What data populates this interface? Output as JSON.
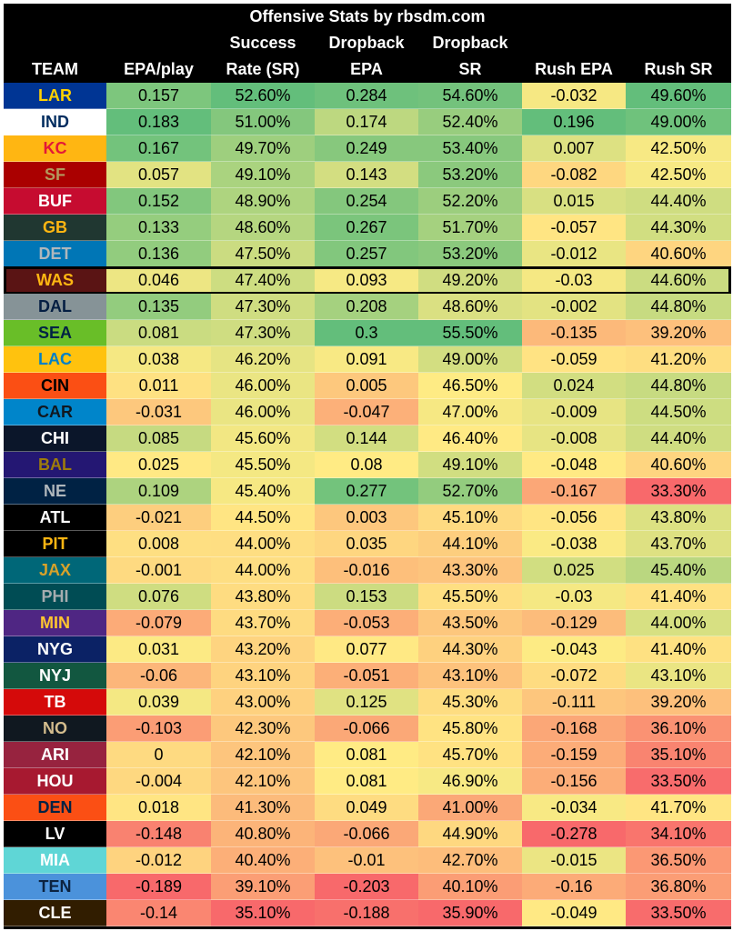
{
  "chart_data": {
    "type": "table",
    "title": "Offensive Stats by rbsdm.com",
    "columns": [
      {
        "key": "team",
        "label_lines": [
          "",
          "",
          "TEAM"
        ]
      },
      {
        "key": "epa",
        "label_lines": [
          "",
          "",
          "EPA/play"
        ]
      },
      {
        "key": "sr",
        "label_lines": [
          "",
          "Success",
          "Rate (SR)"
        ]
      },
      {
        "key": "db_epa",
        "label_lines": [
          "",
          "Dropback",
          "EPA"
        ]
      },
      {
        "key": "db_sr",
        "label_lines": [
          "",
          "Dropback",
          "SR"
        ]
      },
      {
        "key": "rush_epa",
        "label_lines": [
          "",
          "",
          "Rush EPA"
        ]
      },
      {
        "key": "rush_sr",
        "label_lines": [
          "",
          "",
          "Rush SR"
        ]
      }
    ],
    "highlighted_team": "WAS",
    "color_scale": {
      "low": "#f8696b",
      "mid": "#ffeb84",
      "high": "#63be7b"
    },
    "rows": [
      {
        "team": "LAR",
        "bg": "#003594",
        "fg": "#FFD100",
        "values": [
          "0.157",
          "52.60%",
          "0.284",
          "54.60%",
          "-0.032",
          "49.60%"
        ]
      },
      {
        "team": "IND",
        "bg": "#FFFFFF",
        "fg": "#002C5F",
        "values": [
          "0.183",
          "51.00%",
          "0.174",
          "52.40%",
          "0.196",
          "49.00%"
        ]
      },
      {
        "team": "KC",
        "bg": "#FFB612",
        "fg": "#E31837",
        "values": [
          "0.167",
          "49.70%",
          "0.249",
          "53.40%",
          "0.007",
          "42.50%"
        ]
      },
      {
        "team": "SF",
        "bg": "#AA0000",
        "fg": "#B3995D",
        "values": [
          "0.057",
          "49.10%",
          "0.143",
          "53.20%",
          "-0.082",
          "42.50%"
        ]
      },
      {
        "team": "BUF",
        "bg": "#C60C30",
        "fg": "#FFFFFF",
        "values": [
          "0.152",
          "48.90%",
          "0.254",
          "52.20%",
          "0.015",
          "44.40%"
        ]
      },
      {
        "team": "GB",
        "bg": "#203731",
        "fg": "#FFB612",
        "values": [
          "0.133",
          "48.60%",
          "0.267",
          "51.70%",
          "-0.057",
          "44.30%"
        ]
      },
      {
        "team": "DET",
        "bg": "#0076B6",
        "fg": "#B0B7BC",
        "values": [
          "0.136",
          "47.50%",
          "0.257",
          "53.20%",
          "-0.012",
          "40.60%"
        ]
      },
      {
        "team": "WAS",
        "bg": "#5A1414",
        "fg": "#FFB612",
        "values": [
          "0.046",
          "47.40%",
          "0.093",
          "49.20%",
          "-0.03",
          "44.60%"
        ]
      },
      {
        "team": "DAL",
        "bg": "#869397",
        "fg": "#041E42",
        "values": [
          "0.135",
          "47.30%",
          "0.208",
          "48.60%",
          "-0.002",
          "44.80%"
        ]
      },
      {
        "team": "SEA",
        "bg": "#69BE28",
        "fg": "#002244",
        "values": [
          "0.081",
          "47.30%",
          "0.3",
          "55.50%",
          "-0.135",
          "39.20%"
        ]
      },
      {
        "team": "LAC",
        "bg": "#FFC20E",
        "fg": "#0080C6",
        "values": [
          "0.038",
          "46.20%",
          "0.091",
          "49.00%",
          "-0.059",
          "41.20%"
        ]
      },
      {
        "team": "CIN",
        "bg": "#FB4F14",
        "fg": "#000000",
        "values": [
          "0.011",
          "46.00%",
          "0.005",
          "46.50%",
          "0.024",
          "44.80%"
        ]
      },
      {
        "team": "CAR",
        "bg": "#0085CA",
        "fg": "#101820",
        "values": [
          "-0.031",
          "46.00%",
          "-0.047",
          "47.00%",
          "-0.009",
          "44.50%"
        ]
      },
      {
        "team": "CHI",
        "bg": "#0B162A",
        "fg": "#FFFFFF",
        "values": [
          "0.085",
          "45.60%",
          "0.144",
          "46.40%",
          "-0.008",
          "44.40%"
        ]
      },
      {
        "team": "BAL",
        "bg": "#241773",
        "fg": "#9E7C0C",
        "values": [
          "0.025",
          "45.50%",
          "0.08",
          "49.10%",
          "-0.048",
          "40.60%"
        ]
      },
      {
        "team": "NE",
        "bg": "#002244",
        "fg": "#B0B7BC",
        "values": [
          "0.109",
          "45.40%",
          "0.277",
          "52.70%",
          "-0.167",
          "33.30%"
        ]
      },
      {
        "team": "ATL",
        "bg": "#000000",
        "fg": "#FFFFFF",
        "values": [
          "-0.021",
          "44.50%",
          "0.003",
          "45.10%",
          "-0.056",
          "43.80%"
        ]
      },
      {
        "team": "PIT",
        "bg": "#000000",
        "fg": "#FFB612",
        "values": [
          "0.008",
          "44.00%",
          "0.035",
          "44.10%",
          "-0.038",
          "43.70%"
        ]
      },
      {
        "team": "JAX",
        "bg": "#006778",
        "fg": "#D7A22A",
        "values": [
          "-0.001",
          "44.00%",
          "-0.016",
          "43.30%",
          "0.025",
          "45.40%"
        ]
      },
      {
        "team": "PHI",
        "bg": "#004C54",
        "fg": "#A5ACAF",
        "values": [
          "0.076",
          "43.80%",
          "0.153",
          "45.50%",
          "-0.03",
          "41.40%"
        ]
      },
      {
        "team": "MIN",
        "bg": "#4F2683",
        "fg": "#FFC62F",
        "values": [
          "-0.079",
          "43.70%",
          "-0.053",
          "43.50%",
          "-0.129",
          "44.00%"
        ]
      },
      {
        "team": "NYG",
        "bg": "#0B2265",
        "fg": "#FFFFFF",
        "values": [
          "0.031",
          "43.20%",
          "0.077",
          "44.30%",
          "-0.043",
          "41.40%"
        ]
      },
      {
        "team": "NYJ",
        "bg": "#125740",
        "fg": "#FFFFFF",
        "values": [
          "-0.06",
          "43.10%",
          "-0.051",
          "43.10%",
          "-0.072",
          "43.10%"
        ]
      },
      {
        "team": "TB",
        "bg": "#D50A0A",
        "fg": "#FFFFFF",
        "values": [
          "0.039",
          "43.00%",
          "0.125",
          "45.30%",
          "-0.111",
          "39.20%"
        ]
      },
      {
        "team": "NO",
        "bg": "#101820",
        "fg": "#D3BC8D",
        "values": [
          "-0.103",
          "42.30%",
          "-0.066",
          "45.80%",
          "-0.168",
          "36.10%"
        ]
      },
      {
        "team": "ARI",
        "bg": "#97233F",
        "fg": "#FFFFFF",
        "values": [
          "0",
          "42.10%",
          "0.081",
          "45.70%",
          "-0.159",
          "35.10%"
        ]
      },
      {
        "team": "HOU",
        "bg": "#A71930",
        "fg": "#FFFFFF",
        "values": [
          "-0.004",
          "42.10%",
          "0.081",
          "46.90%",
          "-0.156",
          "33.50%"
        ]
      },
      {
        "team": "DEN",
        "bg": "#FB4F14",
        "fg": "#002244",
        "values": [
          "0.018",
          "41.30%",
          "0.049",
          "41.00%",
          "-0.034",
          "41.70%"
        ]
      },
      {
        "team": "LV",
        "bg": "#000000",
        "fg": "#FFFFFF",
        "values": [
          "-0.148",
          "40.80%",
          "-0.066",
          "44.90%",
          "-0.278",
          "34.10%"
        ]
      },
      {
        "team": "MIA",
        "bg": "#5FD6D6",
        "fg": "#FFFFFF",
        "values": [
          "-0.012",
          "40.40%",
          "-0.01",
          "42.70%",
          "-0.015",
          "36.50%"
        ]
      },
      {
        "team": "TEN",
        "bg": "#4B92DB",
        "fg": "#0C2340",
        "values": [
          "-0.189",
          "39.10%",
          "-0.203",
          "40.10%",
          "-0.16",
          "36.80%"
        ]
      },
      {
        "team": "CLE",
        "bg": "#311D00",
        "fg": "#FFFFFF",
        "values": [
          "-0.14",
          "35.10%",
          "-0.188",
          "35.90%",
          "-0.049",
          "33.50%"
        ]
      }
    ]
  }
}
